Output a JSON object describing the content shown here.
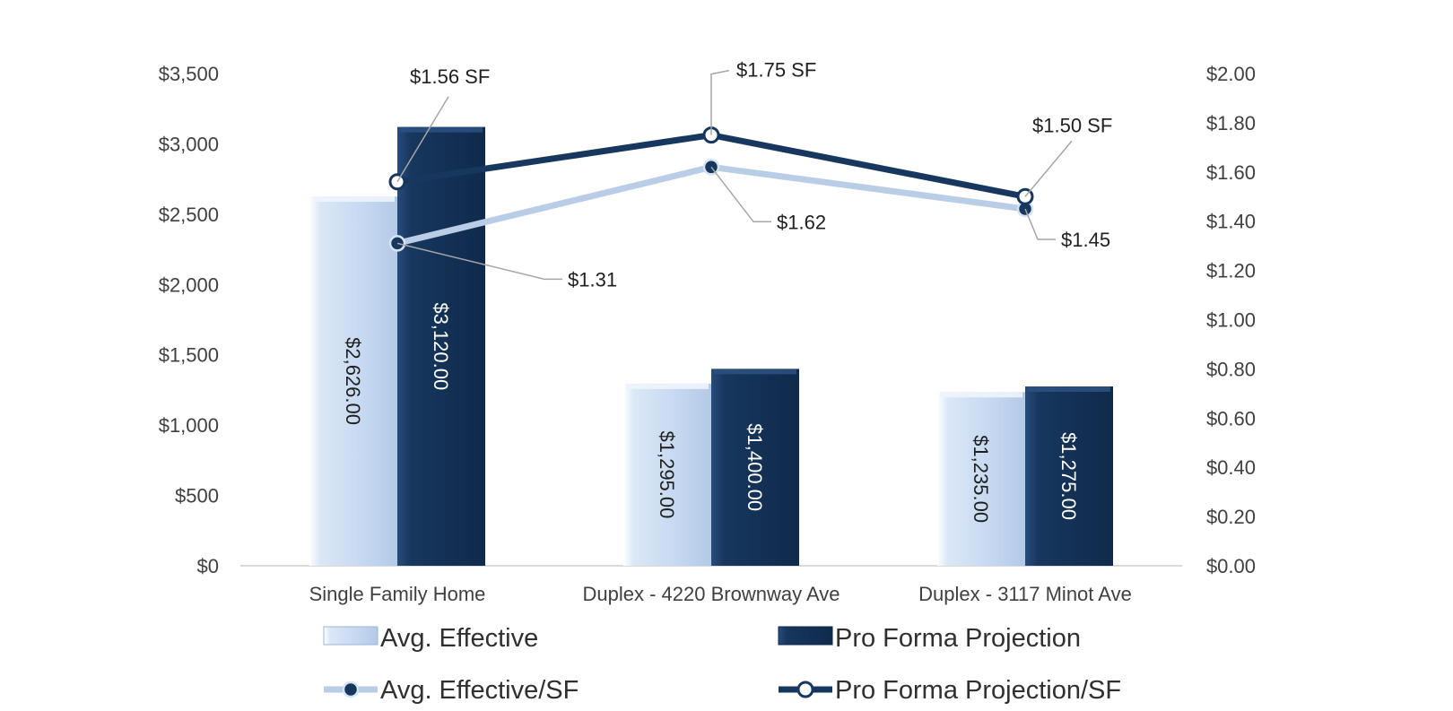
{
  "chart_data": {
    "type": "bar",
    "categories": [
      "Single Family Home",
      "Duplex - 4220 Brownway Ave",
      "Duplex - 3117 Minot Ave"
    ],
    "series": [
      {
        "name": "Avg. Effective",
        "kind": "bar",
        "axis": "left",
        "color": "#c6d9f1",
        "values": [
          2626,
          1295,
          1235
        ],
        "labels": [
          "$2,626.00",
          "$1,295.00",
          "$1,235.00"
        ]
      },
      {
        "name": "Pro Forma Projection",
        "kind": "bar",
        "axis": "left",
        "color": "#17375e",
        "values": [
          3120,
          1400,
          1275
        ],
        "labels": [
          "$3,120.00",
          "$1,400.00",
          "$1,275.00"
        ]
      },
      {
        "name": "Avg. Effective/SF",
        "kind": "line",
        "axis": "right",
        "color": "#b9cde6",
        "values": [
          1.31,
          1.62,
          1.45
        ],
        "labels": [
          "$1.31",
          "$1.62",
          "$1.45"
        ]
      },
      {
        "name": "Pro Forma Projection/SF",
        "kind": "line",
        "axis": "right",
        "color": "#17375e",
        "values": [
          1.56,
          1.75,
          1.5
        ],
        "labels": [
          "$1.56 SF",
          "$1.75 SF",
          "$1.50 SF"
        ]
      }
    ],
    "left_axis": {
      "min": 0,
      "max": 3500,
      "step": 500,
      "tick_labels": [
        "$0",
        "$500",
        "$1,000",
        "$1,500",
        "$2,000",
        "$2,500",
        "$3,000",
        "$3,500"
      ]
    },
    "right_axis": {
      "min": 0,
      "max": 2,
      "step": 0.2,
      "tick_labels": [
        "$0.00",
        "$0.20",
        "$0.40",
        "$0.60",
        "$0.80",
        "$1.00",
        "$1.20",
        "$1.40",
        "$1.60",
        "$1.80",
        "$2.00"
      ]
    },
    "title": "",
    "legend_position": "bottom",
    "grid": false
  }
}
